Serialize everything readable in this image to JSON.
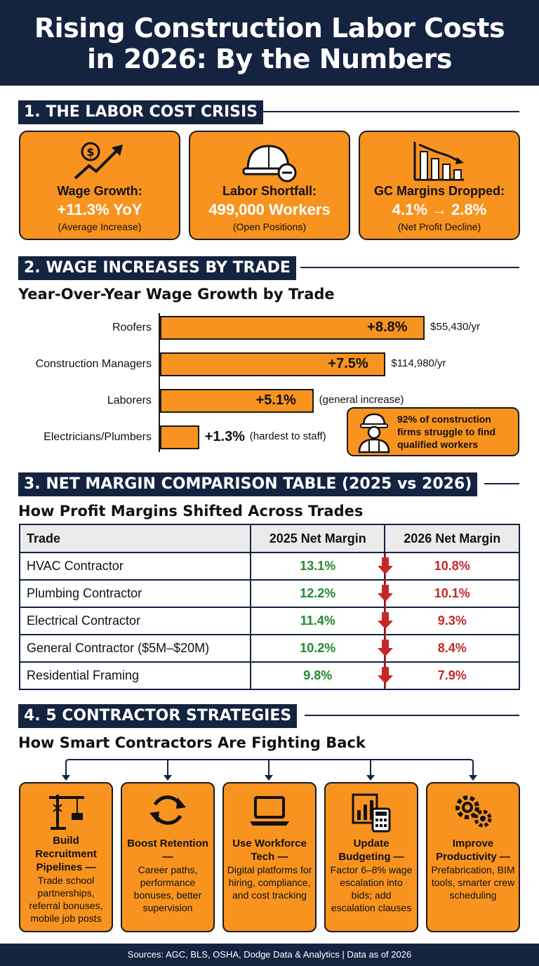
{
  "header": {
    "title_line1": "Rising Construction Labor Costs",
    "title_line2": "in 2026: By the Numbers"
  },
  "sections": {
    "s1": "1. THE LABOR COST CRISIS",
    "s2": "2. WAGE INCREASES BY TRADE",
    "s3": "3. NET MARGIN COMPARISON TABLE (2025 vs 2026)",
    "s4": "4. 5 CONTRACTOR STRATEGIES"
  },
  "cards": [
    {
      "label": "Wage Growth:",
      "value": "+11.3% YoY",
      "note": "(Average Increase)",
      "icon": "money-growth-icon"
    },
    {
      "label": "Labor Shortfall:",
      "value": "499,000 Workers",
      "note": "(Open Positions)",
      "icon": "hardhat-minus-icon"
    },
    {
      "label": "GC Margins Dropped:",
      "value": "4.1% → 2.8%",
      "note": "(Net Profit Decline)",
      "icon": "declining-chart-icon"
    }
  ],
  "chart_data": {
    "type": "bar",
    "orientation": "horizontal",
    "title": "Year-Over-Year Wage Growth by Trade",
    "categories": [
      "Roofers",
      "Construction Managers",
      "Laborers",
      "Electricians/Plumbers"
    ],
    "values": [
      8.8,
      7.5,
      5.1,
      1.3
    ],
    "value_labels": [
      "+8.8%",
      "+7.5%",
      "+5.1%",
      "+1.3%"
    ],
    "notes": [
      "$55,430/yr",
      "$114,980/yr",
      "(general increase)",
      "(hardest to staff)"
    ],
    "xlim": [
      0,
      9.8
    ]
  },
  "callout": {
    "text": "92% of construction firms struggle to find qualified workers",
    "icon": "worker-icon"
  },
  "table": {
    "subtitle": "How Profit Margins Shifted Across Trades",
    "headers": [
      "Trade",
      "2025 Net Margin",
      "2026 Net Margin"
    ],
    "rows": [
      [
        "HVAC Contractor",
        "13.1%",
        "10.8%"
      ],
      [
        "Plumbing Contractor",
        "12.2%",
        "10.1%"
      ],
      [
        "Electrical Contractor",
        "11.4%",
        "9.3%"
      ],
      [
        "General Contractor ($5M–$20M)",
        "10.2%",
        "8.4%"
      ],
      [
        "Residential Framing",
        "9.8%",
        "7.9%"
      ]
    ],
    "colors": {
      "up": "#1e8a2e",
      "down": "#c62828"
    }
  },
  "strategies": {
    "subtitle": "How Smart Contractors Are Fighting Back",
    "items": [
      {
        "title": "Build Recruitment Pipelines —",
        "body": "Trade school partnerships, referral bonuses, mobile job posts",
        "icon": "crane-icon"
      },
      {
        "title": "Boost Retention —",
        "body": "Career paths, performance bonuses, better supervision",
        "icon": "refresh-icon"
      },
      {
        "title": "Use Workforce Tech —",
        "body": "Digital platforms for hiring, compliance, and cost tracking",
        "icon": "laptop-icon"
      },
      {
        "title": "Update Budgeting —",
        "body": "Factor 6–8% wage escalation into bids; add escalation clauses",
        "icon": "calculator-icon"
      },
      {
        "title": "Improve Productivity —",
        "body": "Prefabrication, BIM tools, smarter crew scheduling",
        "icon": "gears-icon"
      }
    ]
  },
  "footer": "Sources: AGC, BLS, OSHA, Dodge Data & Analytics | Data as of 2026",
  "colors": {
    "navy": "#14233f",
    "orange": "#f7931e"
  }
}
